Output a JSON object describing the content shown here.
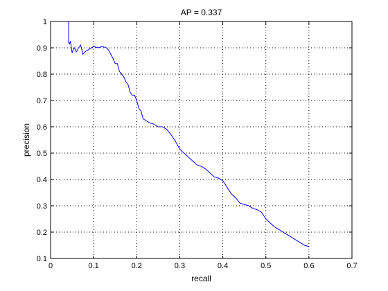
{
  "chart_data": {
    "type": "line",
    "title": "AP = 0.337",
    "xlabel": "recall",
    "ylabel": "precision",
    "xlim": [
      0,
      0.7
    ],
    "ylim": [
      0.1,
      1
    ],
    "xticks": [
      "0",
      "0.1",
      "0.2",
      "0.3",
      "0.4",
      "0.5",
      "0.6",
      "0.7"
    ],
    "yticks": [
      "0.1",
      "0.2",
      "0.3",
      "0.4",
      "0.5",
      "0.6",
      "0.7",
      "0.8",
      "0.9",
      "1"
    ],
    "grid": true,
    "series": [
      {
        "color": "#0000ff",
        "x": [
          0.042,
          0.042,
          0.044,
          0.046,
          0.048,
          0.05,
          0.052,
          0.055,
          0.06,
          0.065,
          0.07,
          0.075,
          0.08,
          0.09,
          0.1,
          0.11,
          0.12,
          0.13,
          0.135,
          0.14,
          0.145,
          0.15,
          0.155,
          0.16,
          0.165,
          0.17,
          0.175,
          0.18,
          0.185,
          0.19,
          0.195,
          0.2,
          0.205,
          0.21,
          0.215,
          0.22,
          0.23,
          0.24,
          0.25,
          0.26,
          0.27,
          0.28,
          0.29,
          0.3,
          0.31,
          0.32,
          0.33,
          0.34,
          0.35,
          0.36,
          0.37,
          0.38,
          0.39,
          0.4,
          0.41,
          0.42,
          0.43,
          0.44,
          0.45,
          0.46,
          0.47,
          0.48,
          0.49,
          0.5,
          0.51,
          0.52,
          0.53,
          0.54,
          0.55,
          0.56,
          0.57,
          0.58,
          0.59,
          0.6
        ],
        "y": [
          1.0,
          0.92,
          0.915,
          0.925,
          0.905,
          0.88,
          0.89,
          0.9,
          0.885,
          0.9,
          0.91,
          0.875,
          0.885,
          0.895,
          0.905,
          0.9,
          0.905,
          0.9,
          0.89,
          0.875,
          0.86,
          0.84,
          0.84,
          0.81,
          0.8,
          0.79,
          0.77,
          0.76,
          0.73,
          0.72,
          0.72,
          0.7,
          0.67,
          0.66,
          0.63,
          0.625,
          0.615,
          0.61,
          0.6,
          0.6,
          0.59,
          0.57,
          0.545,
          0.515,
          0.5,
          0.485,
          0.47,
          0.455,
          0.45,
          0.44,
          0.425,
          0.41,
          0.405,
          0.395,
          0.37,
          0.345,
          0.33,
          0.31,
          0.305,
          0.3,
          0.29,
          0.285,
          0.275,
          0.25,
          0.235,
          0.22,
          0.21,
          0.2,
          0.19,
          0.18,
          0.17,
          0.16,
          0.15,
          0.145
        ]
      }
    ]
  }
}
